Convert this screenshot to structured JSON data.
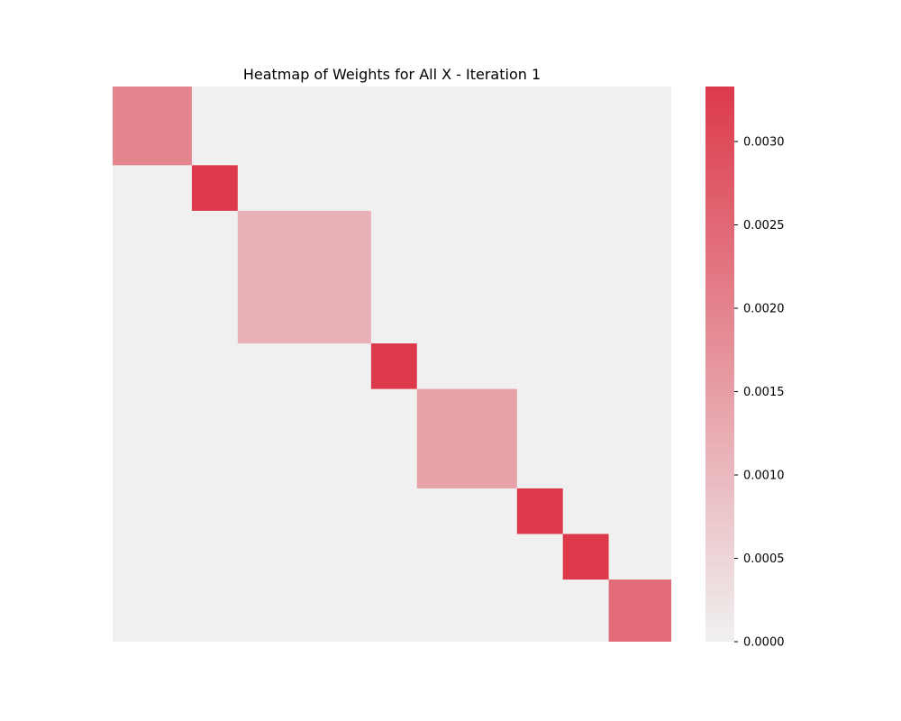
{
  "chart_data": {
    "type": "heatmap",
    "title": "Heatmap of Weights for All X - Iteration 1",
    "xlabel": "",
    "ylabel": "",
    "axes_visible": false,
    "background_value": 0,
    "diagonal_blocks": [
      {
        "block": 1,
        "rows": 19,
        "value": 0.00196
      },
      {
        "block": 2,
        "rows": 11,
        "value": 0.00333
      },
      {
        "block": 3,
        "rows": 32,
        "value": 0.00115
      },
      {
        "block": 4,
        "rows": 11,
        "value": 0.00333
      },
      {
        "block": 5,
        "rows": 24,
        "value": 0.00144
      },
      {
        "block": 6,
        "rows": 11,
        "value": 0.00333
      },
      {
        "block": 7,
        "rows": 11,
        "value": 0.00333
      },
      {
        "block": 8,
        "rows": 15,
        "value": 0.00244
      }
    ],
    "colorbar": {
      "range": [
        0.0,
        0.00333
      ],
      "ticks": [
        0.0,
        0.0005,
        0.001,
        0.0015,
        0.002,
        0.0025,
        0.003
      ],
      "tick_labels": [
        "0.0000",
        "0.0005",
        "0.0010",
        "0.0015",
        "0.0020",
        "0.0025",
        "0.0030"
      ],
      "color_low": "#f0f0f0",
      "color_high": "#dc3a4b"
    }
  }
}
